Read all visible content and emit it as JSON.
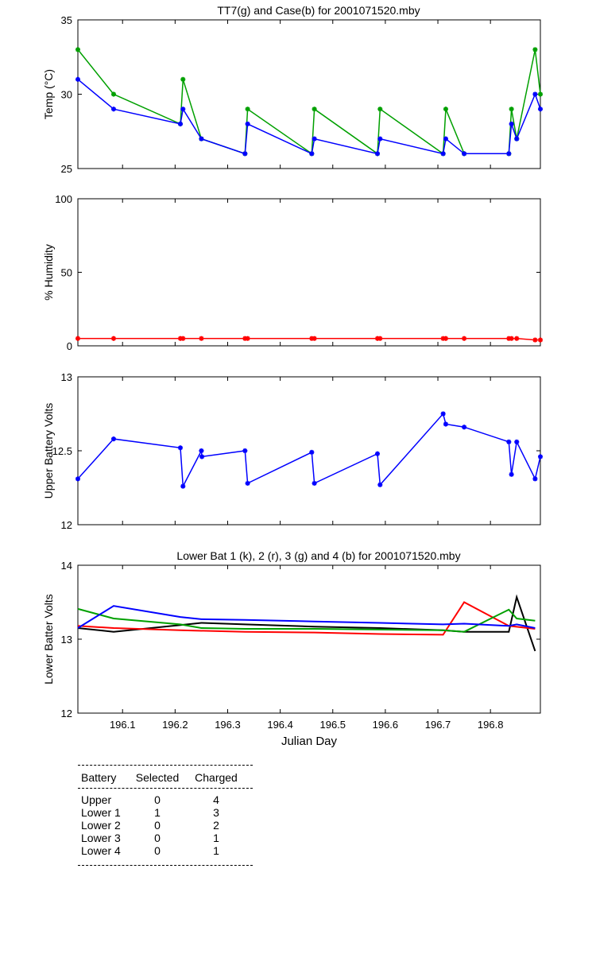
{
  "chart_data": [
    {
      "type": "line",
      "title": "TT7(g) and Case(b) for 2001071520.mby",
      "xlabel": "",
      "ylabel": "Temp (°C)",
      "xlim": [
        196.015,
        196.895
      ],
      "ylim": [
        25,
        35
      ],
      "yticks": [
        "25",
        "30",
        "35"
      ],
      "series": [
        {
          "name": "TT7",
          "color": "#00a000",
          "markers": true,
          "x": [
            196.015,
            196.083,
            196.21,
            196.215,
            196.25,
            196.333,
            196.338,
            196.46,
            196.465,
            196.585,
            196.59,
            196.71,
            196.715,
            196.75,
            196.835,
            196.84,
            196.85,
            196.885,
            196.895
          ],
          "values": [
            33,
            30,
            28,
            31,
            27,
            26,
            29,
            26,
            29,
            26,
            29,
            26,
            29,
            26,
            26,
            29,
            27,
            33,
            30
          ]
        },
        {
          "name": "Case",
          "color": "#0000ff",
          "markers": true,
          "x": [
            196.015,
            196.083,
            196.21,
            196.215,
            196.25,
            196.333,
            196.338,
            196.46,
            196.465,
            196.585,
            196.59,
            196.71,
            196.715,
            196.75,
            196.835,
            196.84,
            196.85,
            196.885,
            196.895
          ],
          "values": [
            31,
            29,
            28,
            29,
            27,
            26,
            28,
            26,
            27,
            26,
            27,
            26,
            27,
            26,
            26,
            28,
            27,
            30,
            29
          ]
        }
      ]
    },
    {
      "type": "line",
      "title": "",
      "xlabel": "",
      "ylabel": "% Humidity",
      "xlim": [
        196.015,
        196.895
      ],
      "ylim": [
        0,
        100
      ],
      "yticks": [
        "0",
        "50",
        "100"
      ],
      "series": [
        {
          "name": "Humidity",
          "color": "#ff0000",
          "markers": true,
          "x": [
            196.015,
            196.083,
            196.21,
            196.215,
            196.25,
            196.333,
            196.338,
            196.46,
            196.465,
            196.585,
            196.59,
            196.71,
            196.715,
            196.75,
            196.835,
            196.84,
            196.85,
            196.885,
            196.895
          ],
          "values": [
            5,
            5,
            5,
            5,
            5,
            5,
            5,
            5,
            5,
            5,
            5,
            5,
            5,
            5,
            5,
            5,
            5,
            4,
            4
          ]
        }
      ]
    },
    {
      "type": "line",
      "title": "",
      "xlabel": "",
      "ylabel": "Upper Battery Volts",
      "xlim": [
        196.015,
        196.895
      ],
      "ylim": [
        12,
        13
      ],
      "yticks": [
        "12",
        "12.5",
        "13"
      ],
      "series": [
        {
          "name": "Upper",
          "color": "#0000ff",
          "markers": true,
          "x": [
            196.015,
            196.083,
            196.21,
            196.215,
            196.25,
            196.251,
            196.333,
            196.338,
            196.46,
            196.465,
            196.585,
            196.59,
            196.71,
            196.715,
            196.75,
            196.835,
            196.84,
            196.85,
            196.885,
            196.895
          ],
          "values": [
            12.31,
            12.58,
            12.52,
            12.26,
            12.5,
            12.46,
            12.5,
            12.28,
            12.49,
            12.28,
            12.48,
            12.27,
            12.75,
            12.68,
            12.66,
            12.56,
            12.34,
            12.56,
            12.31,
            12.46
          ]
        }
      ]
    },
    {
      "type": "line",
      "title": "Lower Bat 1 (k), 2 (r), 3 (g) and 4 (b) for 2001071520.mby",
      "xlabel": "Julian Day",
      "ylabel": "Lower Batter Volts",
      "xlim": [
        196.015,
        196.895
      ],
      "ylim": [
        12,
        14
      ],
      "yticks": [
        "12",
        "13",
        "14"
      ],
      "xticks": [
        196.1,
        196.2,
        196.3,
        196.4,
        196.5,
        196.6,
        196.7,
        196.8
      ],
      "xtick_labels": [
        "196.1",
        "196.2",
        "196.3",
        "196.4",
        "196.5",
        "196.6",
        "196.7",
        "196.8"
      ],
      "series": [
        {
          "name": "Lower 1",
          "color": "#000000",
          "markers": false,
          "x": [
            196.015,
            196.083,
            196.21,
            196.25,
            196.333,
            196.465,
            196.59,
            196.71,
            196.75,
            196.835,
            196.85,
            196.885
          ],
          "values": [
            13.15,
            13.1,
            13.19,
            13.22,
            13.2,
            13.17,
            13.15,
            13.12,
            13.1,
            13.1,
            13.57,
            12.84
          ]
        },
        {
          "name": "Lower 2",
          "color": "#ff0000",
          "markers": false,
          "x": [
            196.015,
            196.083,
            196.21,
            196.333,
            196.465,
            196.59,
            196.71,
            196.75,
            196.835,
            196.885
          ],
          "values": [
            13.18,
            13.15,
            13.12,
            13.1,
            13.09,
            13.07,
            13.06,
            13.5,
            13.18,
            13.14
          ]
        },
        {
          "name": "Lower 3",
          "color": "#00a000",
          "markers": false,
          "x": [
            196.015,
            196.083,
            196.21,
            196.25,
            196.333,
            196.465,
            196.59,
            196.71,
            196.75,
            196.835,
            196.85,
            196.885
          ],
          "values": [
            13.41,
            13.28,
            13.2,
            13.15,
            13.14,
            13.14,
            13.13,
            13.12,
            13.1,
            13.4,
            13.28,
            13.25
          ]
        },
        {
          "name": "Lower 4",
          "color": "#0000ff",
          "markers": false,
          "x": [
            196.015,
            196.083,
            196.21,
            196.25,
            196.333,
            196.465,
            196.59,
            196.71,
            196.75,
            196.835,
            196.85,
            196.885
          ],
          "values": [
            13.15,
            13.45,
            13.3,
            13.27,
            13.26,
            13.24,
            13.22,
            13.2,
            13.21,
            13.18,
            13.2,
            13.15
          ]
        }
      ]
    }
  ],
  "summary": {
    "headers": {
      "battery": "Battery",
      "selected": "Selected",
      "charged": "Charged"
    },
    "rows": [
      {
        "battery": "Upper",
        "selected": "0",
        "charged": "4"
      },
      {
        "battery": "Lower 1",
        "selected": "1",
        "charged": "3"
      },
      {
        "battery": "Lower 2",
        "selected": "0",
        "charged": "2"
      },
      {
        "battery": "Lower 3",
        "selected": "0",
        "charged": "1"
      },
      {
        "battery": "Lower 4",
        "selected": "0",
        "charged": "1"
      }
    ]
  }
}
